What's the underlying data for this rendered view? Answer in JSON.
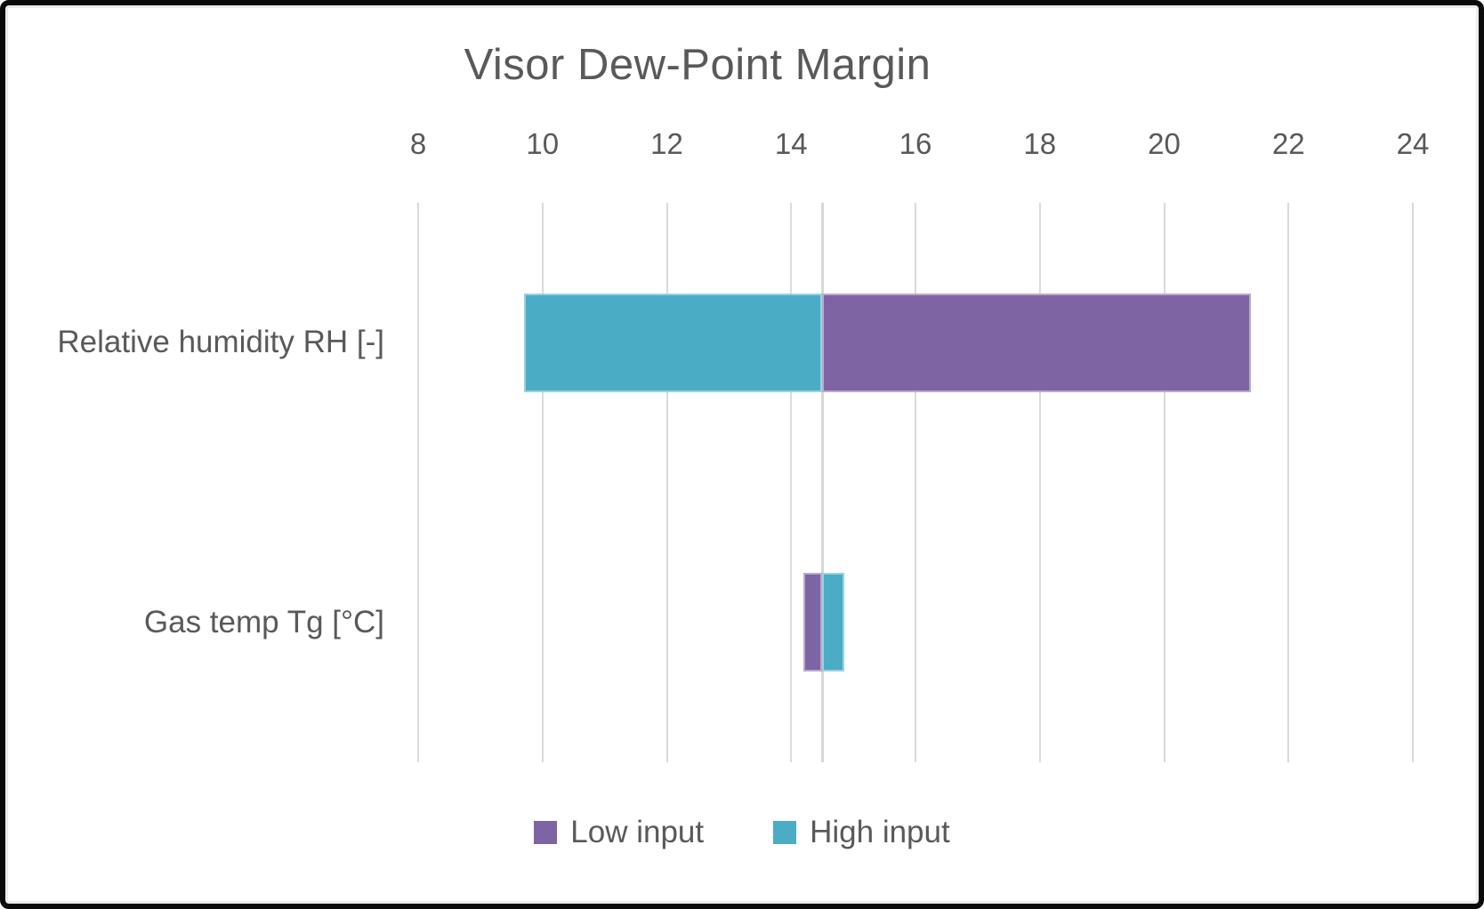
{
  "chart_data": {
    "type": "bar",
    "subtype": "horizontal-tornado-stacked",
    "title": "Visor Dew-Point Margin",
    "x_axis": {
      "position": "top",
      "min": 8,
      "max": 24,
      "tick_step": 2,
      "ticks": [
        8,
        10,
        12,
        14,
        16,
        18,
        20,
        22,
        24
      ]
    },
    "base_value": 14.5,
    "grid": true,
    "categories": [
      "Relative humidity RH [-]",
      "Gas temp Tg [°C]"
    ],
    "series": [
      {
        "name": "Low input",
        "color": "#7E64A3"
      },
      {
        "name": "High input",
        "color": "#4AACC5"
      }
    ],
    "rows": [
      {
        "category": "Relative humidity RH [-]",
        "segments": [
          {
            "series": "High input",
            "from": 9.7,
            "to": 14.5
          },
          {
            "series": "Low input",
            "from": 14.5,
            "to": 21.4
          }
        ]
      },
      {
        "category": "Gas temp Tg [°C]",
        "segments": [
          {
            "series": "Low input",
            "from": 14.2,
            "to": 14.5
          },
          {
            "series": "High input",
            "from": 14.5,
            "to": 14.85
          }
        ]
      }
    ],
    "legend": {
      "position": "bottom",
      "entries": [
        "Low input",
        "High input"
      ]
    }
  },
  "colors": {
    "text": "#595959",
    "gridline": "#DADADA",
    "axis_line": "#D6D6D6",
    "frame_border": "#0B0B0B",
    "background": "#FFFFFF"
  }
}
